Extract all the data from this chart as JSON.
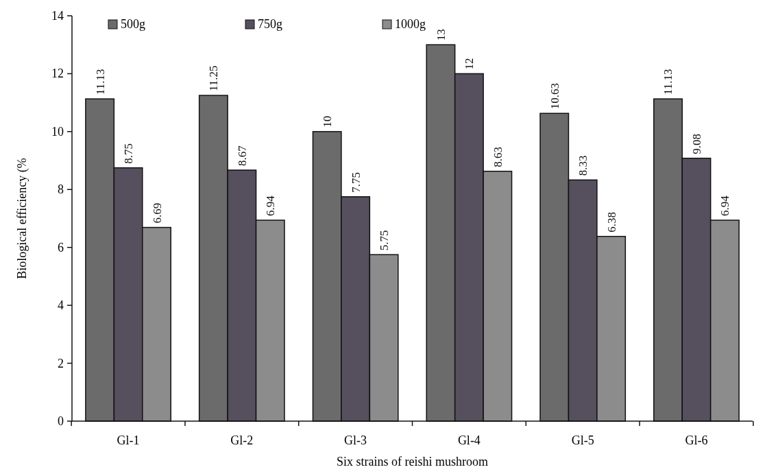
{
  "chart_data": {
    "type": "bar",
    "xlabel": "Six strains of reishi mushroom",
    "ylabel": "Biological efficiency (%",
    "categories": [
      "Gl-1",
      "Gl-2",
      "Gl-3",
      "Gl-4",
      "Gl-5",
      "Gl-6"
    ],
    "series": [
      {
        "name": "500g",
        "color": "#6b6b6b",
        "values": [
          11.13,
          11.25,
          10,
          13,
          10.63,
          11.13
        ]
      },
      {
        "name": "750g",
        "color": "#56505e",
        "values": [
          8.75,
          8.67,
          7.75,
          12,
          8.33,
          9.08
        ]
      },
      {
        "name": "1000g",
        "color": "#8c8c8c",
        "values": [
          6.69,
          6.94,
          5.75,
          8.63,
          6.38,
          6.94
        ]
      }
    ],
    "ylim": [
      0,
      14
    ],
    "yticks": [
      0,
      2,
      4,
      6,
      8,
      10,
      12,
      14
    ],
    "data_labels": true,
    "legend": "top left",
    "grid": false
  }
}
